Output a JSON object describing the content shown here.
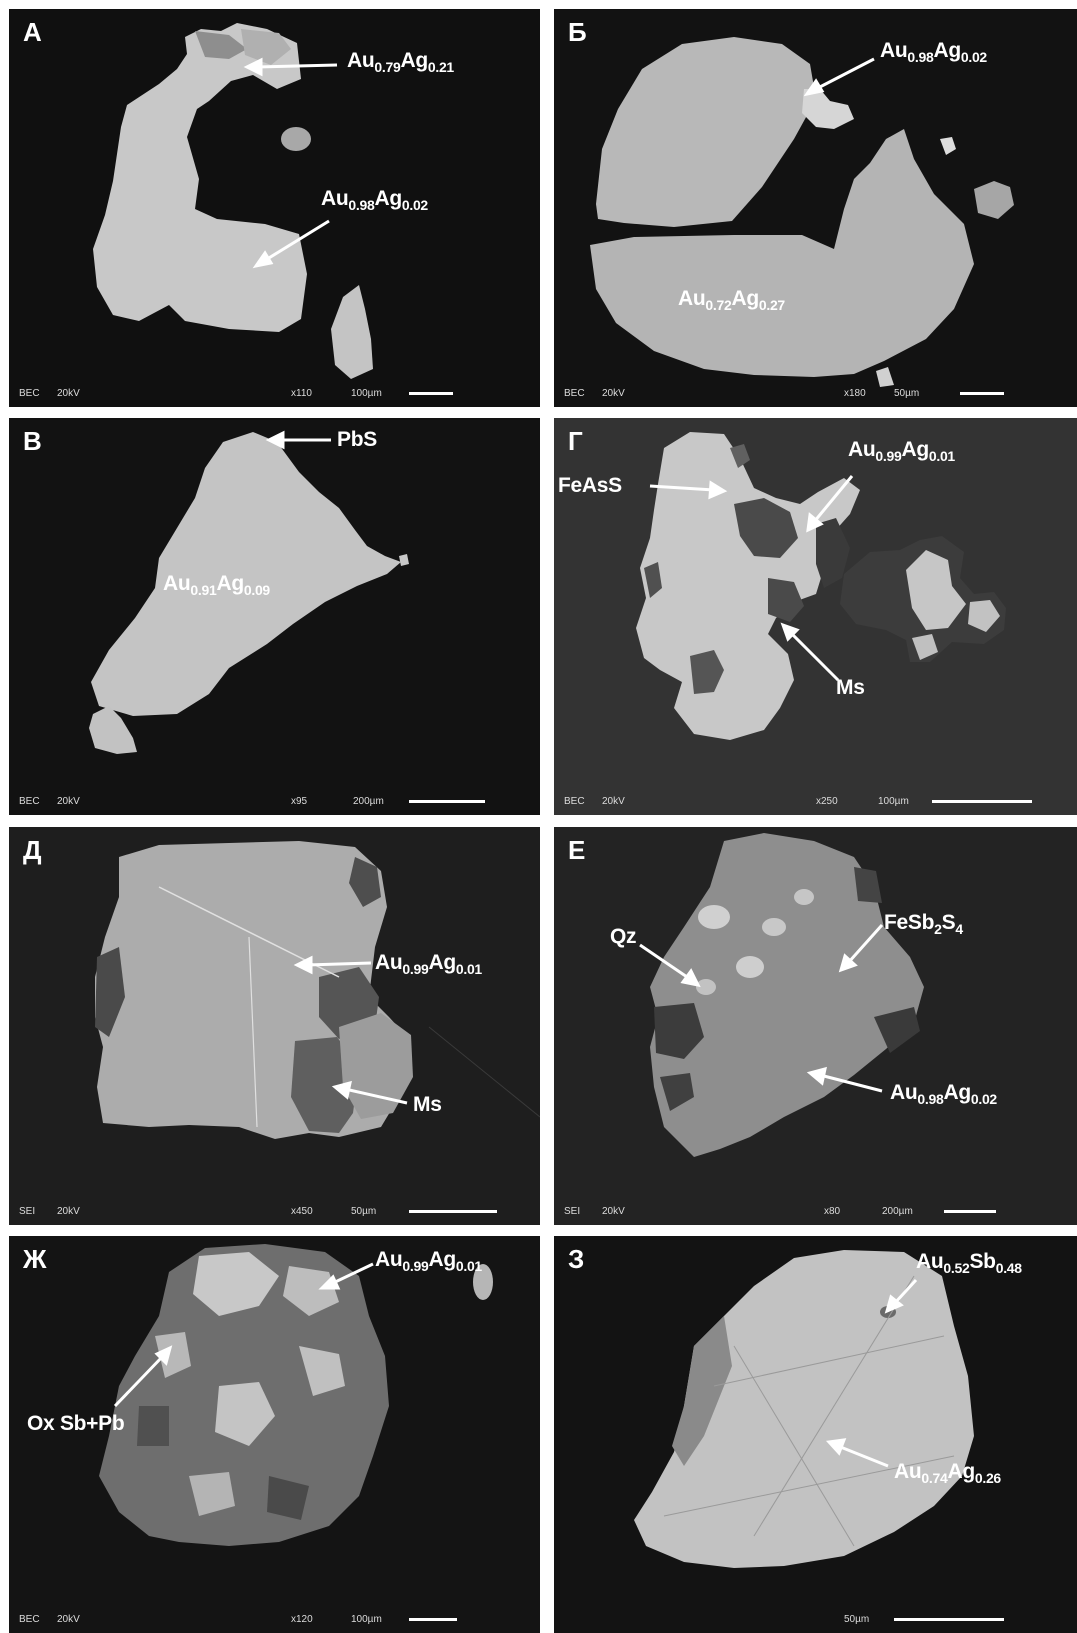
{
  "panels": [
    {
      "letter": "А",
      "footer": {
        "mode": "BEC",
        "kv": "20kV",
        "mag": "x110",
        "scale": "100µm"
      },
      "labels": [
        {
          "base1": "Au",
          "sub1": "0.79",
          "base2": "Ag",
          "sub2": "0.21"
        },
        {
          "base1": "Au",
          "sub1": "0.98",
          "base2": "Ag",
          "sub2": "0.02"
        }
      ]
    },
    {
      "letter": "Б",
      "footer": {
        "mode": "BEC",
        "kv": "20kV",
        "mag": "x180",
        "scale": "50µm"
      },
      "labels": [
        {
          "base1": "Au",
          "sub1": "0.98",
          "base2": "Ag",
          "sub2": "0.02"
        },
        {
          "base1": "Au",
          "sub1": "0.72",
          "base2": "Ag",
          "sub2": "0.27"
        }
      ]
    },
    {
      "letter": "В",
      "footer": {
        "mode": "BEC",
        "kv": "20kV",
        "mag": "x95",
        "scale": "200µm"
      },
      "labels": [
        {
          "text": "PbS"
        },
        {
          "base1": "Au",
          "sub1": "0.91",
          "base2": "Ag",
          "sub2": "0.09"
        }
      ]
    },
    {
      "letter": "Г",
      "footer": {
        "mode": "BEC",
        "kv": "20kV",
        "mag": "x250",
        "scale": "100µm"
      },
      "labels": [
        {
          "text": "FeAsS"
        },
        {
          "base1": "Au",
          "sub1": "0.99",
          "base2": "Ag",
          "sub2": "0.01"
        },
        {
          "text": "Ms"
        }
      ]
    },
    {
      "letter": "Д",
      "footer": {
        "mode": "SEI",
        "kv": "20kV",
        "mag": "x450",
        "scale": "50µm"
      },
      "labels": [
        {
          "base1": "Au",
          "sub1": "0.99",
          "base2": "Ag",
          "sub2": "0.01"
        },
        {
          "text": "Ms"
        }
      ]
    },
    {
      "letter": "Е",
      "footer": {
        "mode": "SEI",
        "kv": "20kV",
        "mag": "x80",
        "scale": "200µm"
      },
      "labels": [
        {
          "text": "Qz"
        },
        {
          "base1": "FeSb",
          "sub1": "2",
          "base2": "S",
          "sub2": "4"
        },
        {
          "base1": "Au",
          "sub1": "0.98",
          "base2": "Ag",
          "sub2": "0.02"
        }
      ]
    },
    {
      "letter": "Ж",
      "footer": {
        "mode": "BEC",
        "kv": "20kV",
        "mag": "x120",
        "scale": "100µm"
      },
      "labels": [
        {
          "base1": "Au",
          "sub1": "0.99",
          "base2": "Ag",
          "sub2": "0.01"
        },
        {
          "text": "Ox Sb+Pb"
        }
      ]
    },
    {
      "letter": "З",
      "footer": {
        "scale": "50µm"
      },
      "labels": [
        {
          "base1": "Au",
          "sub1": "0.52",
          "base2": "Sb",
          "sub2": "0.48"
        },
        {
          "base1": "Au",
          "sub1": "0.74",
          "base2": "Ag",
          "sub2": "0.26"
        }
      ]
    }
  ]
}
